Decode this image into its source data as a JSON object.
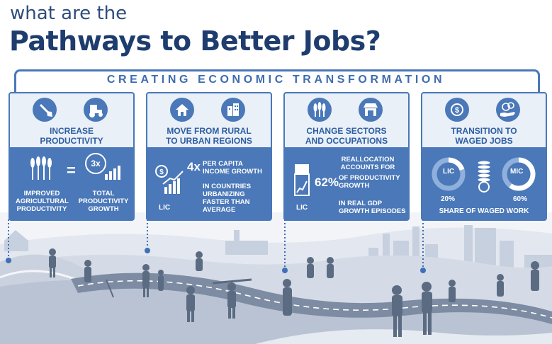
{
  "header": {
    "pre_title": "what are the",
    "title": "Pathways to Better Jobs?",
    "section": "CREATING ECONOMIC TRANSFORMATION"
  },
  "panels": [
    {
      "title_1": "INCREASE",
      "title_2": "PRODUCTIVITY",
      "equals": "=",
      "multiplier": "3x",
      "left_1": "IMPROVED",
      "left_2": "AGRICULTURAL",
      "left_3": "PRODUCTIVITY",
      "right_1": "TOTAL",
      "right_2": "PRODUCTIVITY",
      "right_3": "GROWTH"
    },
    {
      "title_1": "MOVE FROM RURAL",
      "title_2": "TO URBAN REGIONS",
      "stat": "4x",
      "stat_1": "PER CAPITA",
      "stat_2": "INCOME GROWTH",
      "note_1": "IN COUNTRIES",
      "note_2": "URBANIZING",
      "note_3": "FASTER THAN",
      "note_4": "AVERAGE",
      "group": "LIC"
    },
    {
      "title_1": "CHANGE SECTORS",
      "title_2": "AND OCCUPATIONS",
      "pre_1": "REALLOCATION",
      "pre_2": "ACCOUNTS FOR",
      "stat": "62%",
      "stat_1": "OF PRODUCTIVITY",
      "stat_2": "GROWTH",
      "note_1": "IN REAL GDP",
      "note_2": "GROWTH  EPISODES",
      "group": "LIC"
    },
    {
      "title_1": "TRANSITION TO",
      "title_2": "WAGED JOBS",
      "ring_left": "LIC",
      "ring_right": "MIC",
      "value_left": "20%",
      "value_right": "60%",
      "footer": "SHARE OF WAGED WORK"
    }
  ],
  "chart_data": {
    "type": "pie",
    "title": "SHARE OF WAGED WORK",
    "categories": [
      "LIC",
      "MIC"
    ],
    "values": [
      20,
      60
    ],
    "unit": "%"
  }
}
